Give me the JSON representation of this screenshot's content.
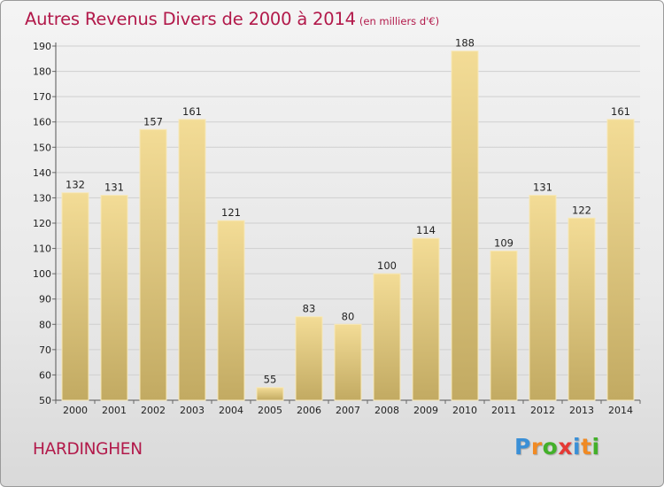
{
  "chart_data": {
    "type": "bar",
    "title": "Autres Revenus Divers de 2000 à 2014",
    "subtitle": "(en milliers d'€)",
    "categories": [
      "2000",
      "2001",
      "2002",
      "2003",
      "2004",
      "2005",
      "2006",
      "2007",
      "2008",
      "2009",
      "2010",
      "2011",
      "2012",
      "2013",
      "2014"
    ],
    "values": [
      132,
      131,
      157,
      161,
      121,
      55,
      83,
      80,
      100,
      114,
      188,
      109,
      131,
      122,
      161
    ],
    "ylim": [
      50,
      190
    ],
    "yticks": [
      50,
      60,
      70,
      80,
      90,
      100,
      110,
      120,
      130,
      140,
      150,
      160,
      170,
      180,
      190
    ],
    "grid": true,
    "bar_color": "#e8cf86"
  },
  "commune": "HARDINGHEN",
  "logo": {
    "text": "Proxiti",
    "letters": [
      {
        "char": "P",
        "color": "#3a8fd6"
      },
      {
        "char": "r",
        "color": "#f08a24"
      },
      {
        "char": "o",
        "color": "#43b02a"
      },
      {
        "char": "x",
        "color": "#e53935"
      },
      {
        "char": "i",
        "color": "#3a8fd6"
      },
      {
        "char": "t",
        "color": "#f08a24"
      },
      {
        "char": "i",
        "color": "#43b02a"
      }
    ]
  }
}
